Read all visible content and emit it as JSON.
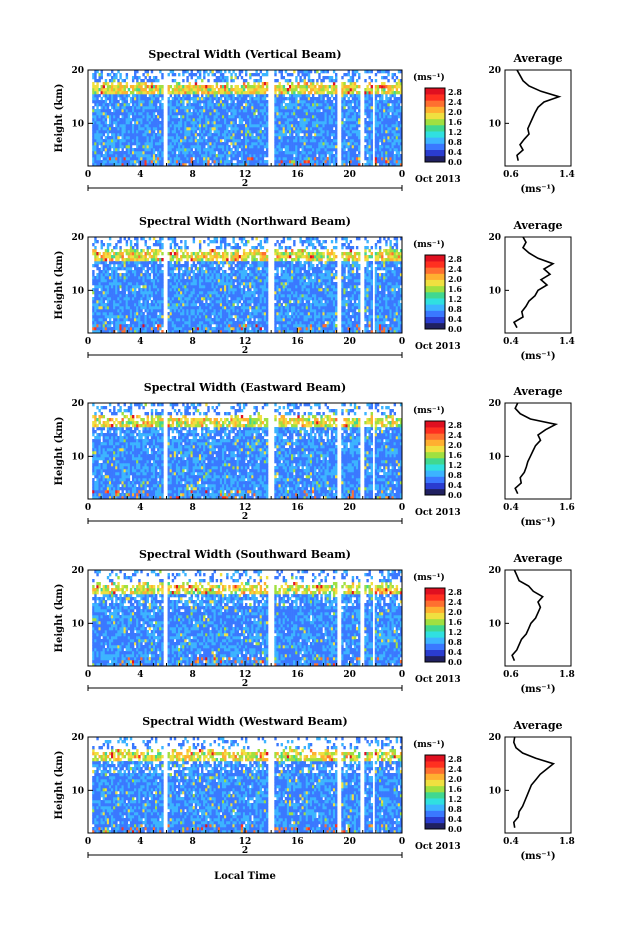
{
  "figure": {
    "xlabel_bottom": "Local Time",
    "date_label": "Oct 2013",
    "day_label": "2",
    "colorbar_units": "(ms⁻¹)",
    "average_title": "Average",
    "average_xlabel": "(ms⁻¹)",
    "ylabel": "Height (km)",
    "colorscale": [
      "#202060",
      "#2a3cd0",
      "#3a78ff",
      "#3cb4ff",
      "#30e0e0",
      "#40d890",
      "#a0e040",
      "#f0e040",
      "#ffb030",
      "#ff7030",
      "#ff3020",
      "#e01020"
    ]
  },
  "chart_data": [
    {
      "type": "heatmap",
      "title": "Spectral Width (Vertical Beam)",
      "xlabel": "Local Time",
      "ylabel": "Height (km)",
      "x_ticks": [
        "0",
        "4",
        "8",
        "12",
        "16",
        "20",
        "0"
      ],
      "y_ticks": [
        "20",
        "10"
      ],
      "xlim": [
        0,
        24
      ],
      "ylim": [
        2,
        20
      ],
      "colorbar": {
        "units": "(ms⁻¹)",
        "ticks": [
          "2.8",
          "2.4",
          "2.0",
          "1.6",
          "1.2",
          "0.8",
          "0.4",
          "0.0"
        ],
        "range": [
          0,
          2.8
        ]
      },
      "data_gaps_hours": [
        [
          0,
          0.3
        ],
        [
          5.8,
          6.1
        ],
        [
          13.7,
          14.2
        ],
        [
          19.1,
          19.3
        ],
        [
          20.8,
          21.1
        ],
        [
          21.8,
          21.95
        ]
      ],
      "average_profile": {
        "title": "Average",
        "xlabel": "(ms⁻¹)",
        "x_ticks": [
          "0.6",
          "1.4"
        ],
        "y_ticks": [
          "20",
          "10"
        ],
        "xlim": [
          0.4,
          1.5
        ],
        "height_km": [
          3,
          4,
          5,
          6,
          7,
          8,
          9,
          10,
          11,
          12,
          13,
          14,
          15,
          16,
          17,
          18,
          19,
          20
        ],
        "width": [
          0.62,
          0.6,
          0.7,
          0.65,
          0.72,
          0.8,
          0.78,
          0.82,
          0.86,
          0.9,
          0.95,
          1.05,
          1.3,
          1.0,
          0.8,
          0.7,
          0.65,
          0.6
        ]
      }
    },
    {
      "type": "heatmap",
      "title": "Spectral Width (Northward Beam)",
      "xlabel": "Local Time",
      "ylabel": "Height (km)",
      "x_ticks": [
        "0",
        "4",
        "8",
        "12",
        "16",
        "20",
        "0"
      ],
      "y_ticks": [
        "20",
        "10"
      ],
      "xlim": [
        0,
        24
      ],
      "ylim": [
        2,
        20
      ],
      "colorbar": {
        "units": "(ms⁻¹)",
        "ticks": [
          "2.8",
          "2.4",
          "2.0",
          "1.6",
          "1.2",
          "0.8",
          "0.4",
          "0.0"
        ],
        "range": [
          0,
          2.8
        ]
      },
      "data_gaps_hours": [
        [
          0,
          0.3
        ],
        [
          5.8,
          6.1
        ],
        [
          13.7,
          14.2
        ],
        [
          19.1,
          19.3
        ],
        [
          20.8,
          21.1
        ],
        [
          21.8,
          21.95
        ]
      ],
      "average_profile": {
        "title": "Average",
        "xlabel": "(ms⁻¹)",
        "x_ticks": [
          "0.4",
          "1.4"
        ],
        "y_ticks": [
          "20",
          "10"
        ],
        "xlim": [
          0.4,
          1.5
        ],
        "height_km": [
          3,
          4,
          5,
          6,
          7,
          8,
          9,
          10,
          11,
          12,
          13,
          14,
          15,
          16,
          17,
          18,
          19,
          20
        ],
        "width": [
          0.6,
          0.55,
          0.7,
          0.68,
          0.75,
          0.8,
          0.9,
          0.95,
          1.1,
          1.0,
          1.15,
          1.05,
          1.2,
          0.95,
          0.8,
          0.7,
          0.75,
          0.7
        ]
      }
    },
    {
      "type": "heatmap",
      "title": "Spectral Width (Eastward Beam)",
      "xlabel": "Local Time",
      "ylabel": "Height (km)",
      "x_ticks": [
        "0",
        "4",
        "8",
        "12",
        "16",
        "20",
        "0"
      ],
      "y_ticks": [
        "20",
        "10"
      ],
      "xlim": [
        0,
        24
      ],
      "ylim": [
        2,
        20
      ],
      "colorbar": {
        "units": "(ms⁻¹)",
        "ticks": [
          "2.8",
          "2.4",
          "2.0",
          "1.6",
          "1.2",
          "0.8",
          "0.4",
          "0.0"
        ],
        "range": [
          0,
          2.8
        ]
      },
      "data_gaps_hours": [
        [
          0,
          0.3
        ],
        [
          5.8,
          6.1
        ],
        [
          13.7,
          14.2
        ],
        [
          19.1,
          19.3
        ],
        [
          20.8,
          21.1
        ],
        [
          21.8,
          21.95
        ]
      ],
      "average_profile": {
        "title": "Average",
        "xlabel": "(ms⁻¹)",
        "x_ticks": [
          "0.4",
          "1.6"
        ],
        "y_ticks": [
          "20",
          "10"
        ],
        "xlim": [
          0.4,
          1.7
        ],
        "height_km": [
          3,
          4,
          5,
          6,
          7,
          8,
          9,
          10,
          11,
          12,
          13,
          14,
          15,
          16,
          17,
          18,
          19,
          20
        ],
        "width": [
          0.65,
          0.6,
          0.72,
          0.7,
          0.78,
          0.82,
          0.85,
          0.9,
          0.95,
          1.0,
          1.1,
          1.05,
          1.2,
          1.4,
          0.9,
          0.7,
          0.6,
          0.65
        ]
      }
    },
    {
      "type": "heatmap",
      "title": "Spectral Width (Southward Beam)",
      "xlabel": "Local Time",
      "ylabel": "Height (km)",
      "x_ticks": [
        "0",
        "4",
        "8",
        "12",
        "16",
        "20",
        "0"
      ],
      "y_ticks": [
        "20",
        "10"
      ],
      "xlim": [
        0,
        24
      ],
      "ylim": [
        2,
        20
      ],
      "colorbar": {
        "units": "(ms⁻¹)",
        "ticks": [
          "2.8",
          "2.4",
          "2.0",
          "1.6",
          "1.2",
          "0.8",
          "0.4",
          "0.0"
        ],
        "range": [
          0,
          2.8
        ]
      },
      "data_gaps_hours": [
        [
          0,
          0.3
        ],
        [
          5.8,
          6.1
        ],
        [
          13.7,
          14.2
        ],
        [
          19.1,
          19.3
        ],
        [
          20.8,
          21.1
        ],
        [
          21.8,
          21.95
        ]
      ],
      "average_profile": {
        "title": "Average",
        "xlabel": "(ms⁻¹)",
        "x_ticks": [
          "0.6",
          "1.8"
        ],
        "y_ticks": [
          "20",
          "10"
        ],
        "xlim": [
          0.5,
          1.9
        ],
        "height_km": [
          3,
          4,
          5,
          6,
          7,
          8,
          9,
          10,
          11,
          12,
          13,
          14,
          15,
          16,
          17,
          18,
          19,
          20
        ],
        "width": [
          0.7,
          0.65,
          0.75,
          0.8,
          0.85,
          0.95,
          1.0,
          1.05,
          1.15,
          1.2,
          1.25,
          1.2,
          1.3,
          1.1,
          1.0,
          0.8,
          0.75,
          0.7
        ]
      }
    },
    {
      "type": "heatmap",
      "title": "Spectral Width (Westward Beam)",
      "xlabel": "Local Time",
      "ylabel": "Height (km)",
      "x_ticks": [
        "0",
        "4",
        "8",
        "12",
        "16",
        "20",
        "0"
      ],
      "y_ticks": [
        "20",
        "10"
      ],
      "xlim": [
        0,
        24
      ],
      "ylim": [
        2,
        20
      ],
      "colorbar": {
        "units": "(ms⁻¹)",
        "ticks": [
          "2.8",
          "2.4",
          "2.0",
          "1.6",
          "1.2",
          "0.8",
          "0.4",
          "0.0"
        ],
        "range": [
          0,
          2.8
        ]
      },
      "data_gaps_hours": [
        [
          0,
          0.3
        ],
        [
          5.8,
          6.1
        ],
        [
          13.7,
          14.2
        ],
        [
          19.1,
          19.3
        ],
        [
          20.8,
          21.1
        ],
        [
          21.8,
          21.95
        ]
      ],
      "average_profile": {
        "title": "Average",
        "xlabel": "(ms⁻¹)",
        "x_ticks": [
          "0.4",
          "1.8"
        ],
        "y_ticks": [
          "20",
          "10"
        ],
        "xlim": [
          0.4,
          1.9
        ],
        "height_km": [
          3,
          4,
          5,
          6,
          7,
          8,
          9,
          10,
          11,
          12,
          13,
          14,
          15,
          16,
          17,
          18,
          19,
          20
        ],
        "width": [
          0.62,
          0.6,
          0.7,
          0.72,
          0.8,
          0.85,
          0.9,
          0.95,
          1.0,
          1.1,
          1.2,
          1.35,
          1.5,
          1.1,
          0.8,
          0.65,
          0.6,
          0.62
        ]
      }
    }
  ]
}
